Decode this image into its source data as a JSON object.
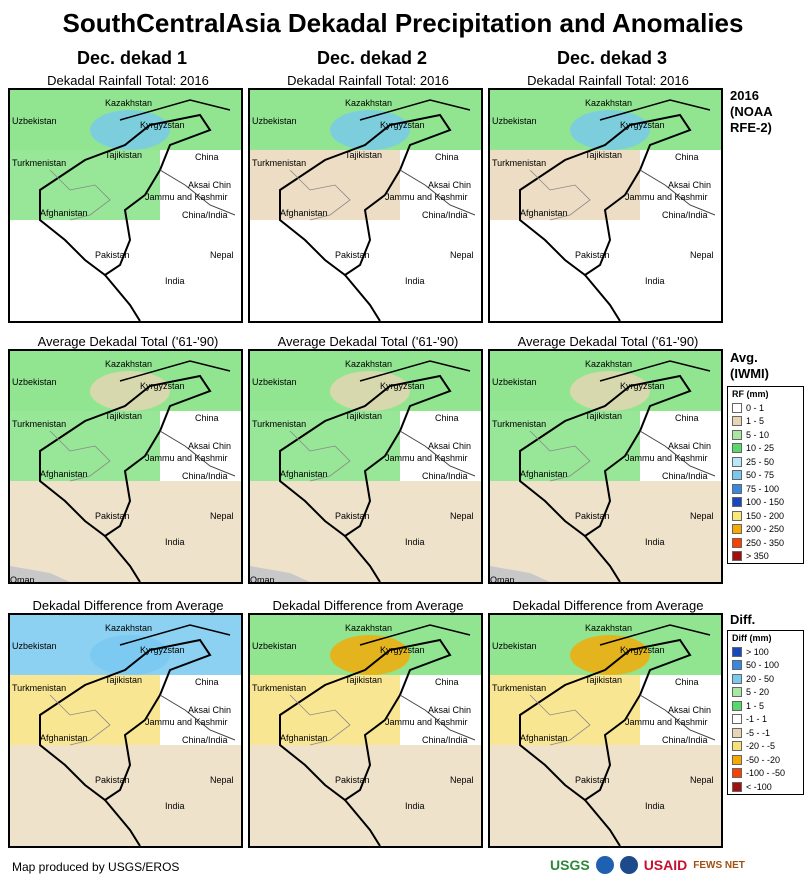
{
  "title": "SouthCentralAsia Dekadal Precipitation and Anomalies",
  "columns": [
    "Dec. dekad 1",
    "Dec. dekad 2",
    "Dec. dekad 3"
  ],
  "row_titles": {
    "rainfall": "Dekadal Rainfall Total: 2016",
    "average": "Average Dekadal Total ('61-'90)",
    "diff": "Dekadal Difference from Average"
  },
  "row_labels": {
    "rainfall": [
      "2016",
      "(NOAA",
      "RFE-2)"
    ],
    "average": [
      "Avg.",
      "(IWMI)"
    ],
    "diff": [
      "Diff."
    ]
  },
  "place_labels": [
    "Kazakhstan",
    "Uzbekistan",
    "Kyrgyzstan",
    "Turkmenistan",
    "Tajikistan",
    "China",
    "Aksai Chin",
    "Jammu and Kashmir",
    "China/India",
    "Afghanistan",
    "Pakistan",
    "Nepal",
    "India",
    "Oman"
  ],
  "rf_legend": {
    "header": "RF (mm)",
    "items": [
      {
        "label": "0 - 1",
        "color": "#ffffff"
      },
      {
        "label": "1 - 5",
        "color": "#e8d5b5"
      },
      {
        "label": "5 - 10",
        "color": "#a8e8a0"
      },
      {
        "label": "10 - 25",
        "color": "#58d868"
      },
      {
        "label": "25 - 50",
        "color": "#b8e8f8"
      },
      {
        "label": "50 - 75",
        "color": "#78c8f0"
      },
      {
        "label": "75 - 100",
        "color": "#3888e0"
      },
      {
        "label": "100 - 150",
        "color": "#1848c0"
      },
      {
        "label": "150 - 200",
        "color": "#f8e878"
      },
      {
        "label": "200 - 250",
        "color": "#f8a800"
      },
      {
        "label": "250 - 350",
        "color": "#f84000"
      },
      {
        "label": "> 350",
        "color": "#a01010"
      }
    ]
  },
  "diff_legend": {
    "header": "Diff (mm)",
    "items": [
      {
        "label": "> 100",
        "color": "#1848c0"
      },
      {
        "label": "50 - 100",
        "color": "#3888e0"
      },
      {
        "label": "20 - 50",
        "color": "#78c8f0"
      },
      {
        "label": "5 - 20",
        "color": "#a8e8a0"
      },
      {
        "label": "1 - 5",
        "color": "#58d868"
      },
      {
        "label": "-1 - 1",
        "color": "#ffffff"
      },
      {
        "label": "-5 - -1",
        "color": "#e8d5b5"
      },
      {
        "label": "-20 - -5",
        "color": "#f8e078"
      },
      {
        "label": "-50 - -20",
        "color": "#f8a800"
      },
      {
        "label": "-100 - -50",
        "color": "#f84000"
      },
      {
        "label": "< -100",
        "color": "#a01010"
      }
    ]
  },
  "footer": "Map produced by USGS/EROS",
  "logos": [
    "USGS",
    "USAID",
    "FEWS NET"
  ],
  "colors": {
    "land_green": "#7ee07e",
    "land_tan": "#e8d5b5",
    "land_yellow": "#f8e078",
    "blue": "#78c8f0",
    "sea": "#c8c8c8"
  }
}
